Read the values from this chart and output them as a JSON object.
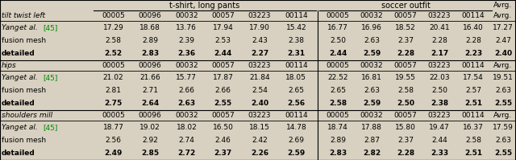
{
  "sections": [
    {
      "label": "tilt twist left",
      "rows": [
        {
          "name": "Yang et al.",
          "ref": " [45]",
          "yang_ref": true,
          "tshirt": [
            "17.29",
            "18.68",
            "13.76",
            "17.94",
            "17.90",
            "15.42"
          ],
          "soccer": [
            "16.77",
            "16.96",
            "18.52",
            "20.41",
            "16.40"
          ],
          "avrg": "17.27",
          "bold": false
        },
        {
          "name": "fusion mesh",
          "ref": "",
          "yang_ref": false,
          "tshirt": [
            "2.58",
            "2.89",
            "2.39",
            "2.53",
            "2.43",
            "2.38"
          ],
          "soccer": [
            "2.50",
            "2.63",
            "2.37",
            "2.28",
            "2.28"
          ],
          "avrg": "2.47",
          "bold": false
        },
        {
          "name": "detailed",
          "ref": "",
          "yang_ref": false,
          "tshirt": [
            "2.52",
            "2.83",
            "2.36",
            "2.44",
            "2.27",
            "2.31"
          ],
          "soccer": [
            "2.44",
            "2.59",
            "2.28",
            "2.17",
            "2.23"
          ],
          "avrg": "2.40",
          "bold": true
        }
      ]
    },
    {
      "label": "hips",
      "rows": [
        {
          "name": "Yang et al.",
          "ref": " [45]",
          "yang_ref": true,
          "tshirt": [
            "21.02",
            "21.66",
            "15.77",
            "17.87",
            "21.84",
            "18.05"
          ],
          "soccer": [
            "22.52",
            "16.81",
            "19.55",
            "22.03",
            "17.54"
          ],
          "avrg": "19.51",
          "bold": false
        },
        {
          "name": "fusion mesh",
          "ref": "",
          "yang_ref": false,
          "tshirt": [
            "2.81",
            "2.71",
            "2.66",
            "2.66",
            "2.54",
            "2.65"
          ],
          "soccer": [
            "2.65",
            "2.63",
            "2.58",
            "2.50",
            "2.57"
          ],
          "avrg": "2.63",
          "bold": false
        },
        {
          "name": "detailed",
          "ref": "",
          "yang_ref": false,
          "tshirt": [
            "2.75",
            "2.64",
            "2.63",
            "2.55",
            "2.40",
            "2.56"
          ],
          "soccer": [
            "2.58",
            "2.59",
            "2.50",
            "2.38",
            "2.51"
          ],
          "avrg": "2.55",
          "bold": true
        }
      ]
    },
    {
      "label": "shoulders mill",
      "rows": [
        {
          "name": "Yang et al.",
          "ref": " [45]",
          "yang_ref": true,
          "tshirt": [
            "18.77",
            "19.02",
            "18.02",
            "16.50",
            "18.15",
            "14.78"
          ],
          "soccer": [
            "18.74",
            "17.88",
            "15.80",
            "19.47",
            "16.37"
          ],
          "avrg": "17.59",
          "bold": false
        },
        {
          "name": "fusion mesh",
          "ref": "",
          "yang_ref": false,
          "tshirt": [
            "2.56",
            "2.92",
            "2.74",
            "2.46",
            "2.42",
            "2.69"
          ],
          "soccer": [
            "2.89",
            "2.87",
            "2.37",
            "2.44",
            "2.58"
          ],
          "avrg": "2.63",
          "bold": false
        },
        {
          "name": "detailed",
          "ref": "",
          "yang_ref": false,
          "tshirt": [
            "2.49",
            "2.85",
            "2.72",
            "2.37",
            "2.26",
            "2.59"
          ],
          "soccer": [
            "2.83",
            "2.82",
            "2.28",
            "2.33",
            "2.51"
          ],
          "avrg": "2.55",
          "bold": true
        }
      ]
    }
  ],
  "tshirt_cols": [
    "00005",
    "00096",
    "00032",
    "00057",
    "03223",
    "00114"
  ],
  "soccer_cols": [
    "00005",
    "00032",
    "00057",
    "03223",
    "00114"
  ],
  "ref_color": "#008800",
  "bg_color": "#d8d0c0",
  "font_size": 6.5,
  "header_font_size": 7.0
}
